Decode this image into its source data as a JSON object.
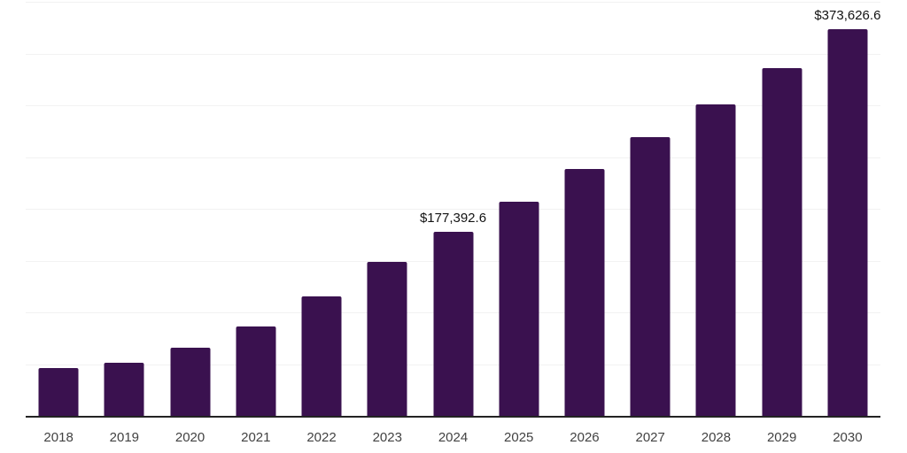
{
  "chart_data": {
    "type": "bar",
    "title": "",
    "xlabel": "",
    "ylabel": "",
    "categories": [
      "2018",
      "2019",
      "2020",
      "2021",
      "2022",
      "2023",
      "2024",
      "2025",
      "2026",
      "2027",
      "2028",
      "2029",
      "2030"
    ],
    "values": [
      45900,
      51000,
      65500,
      86500,
      115400,
      149000,
      177392.6,
      207100,
      238500,
      269000,
      301100,
      335900,
      373626.6
    ],
    "data_labels": [
      {
        "index": 6,
        "text": "$177,392.6"
      },
      {
        "index": 12,
        "text": "$373,626.6"
      }
    ],
    "ylim": [
      0,
      400000
    ],
    "gridline_interval": 50000,
    "grid": "horizontal-only",
    "legend_position": "none",
    "y_axis_tick_labels_visible": false
  },
  "colors": {
    "background": "#ffffff",
    "bar": "#3a114f",
    "gridline": "#f2f2f2",
    "axis_line": "#232323",
    "tick_label": "#424242",
    "value_label": "#121212"
  }
}
